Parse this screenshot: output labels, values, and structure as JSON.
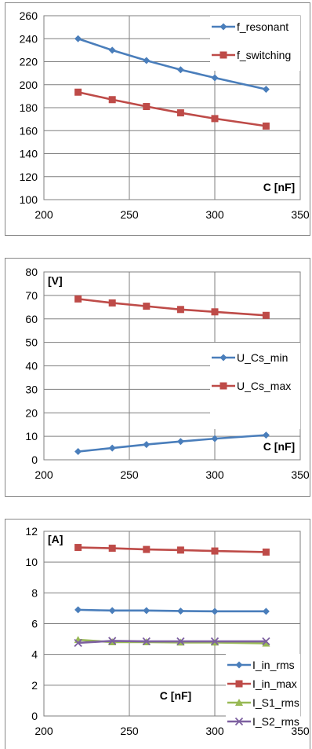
{
  "chart_data": [
    {
      "type": "line",
      "title": "",
      "xlabel": "C [nF]",
      "ylabel": "",
      "xlim": [
        200,
        350
      ],
      "ylim": [
        100,
        260
      ],
      "xticks": [
        200,
        250,
        300,
        350
      ],
      "yticks": [
        100,
        120,
        140,
        160,
        180,
        200,
        220,
        240,
        260
      ],
      "grid": true,
      "legend_position": "top-right",
      "x": [
        220,
        240,
        260,
        280,
        300,
        330
      ],
      "series": [
        {
          "name": "f_resonant",
          "color": "#4a7ebb",
          "marker": "diamond",
          "values": [
            240,
            230,
            221,
            213,
            206,
            196
          ]
        },
        {
          "name": "f_switching",
          "color": "#be4b48",
          "marker": "square",
          "values": [
            193.5,
            187,
            181,
            175.5,
            170.5,
            164
          ]
        }
      ]
    },
    {
      "type": "line",
      "title": "",
      "xlabel": "C [nF]",
      "ylabel": "[V]",
      "xlim": [
        200,
        350
      ],
      "ylim": [
        0,
        80
      ],
      "xticks": [
        200,
        250,
        300,
        350
      ],
      "yticks": [
        0,
        10,
        20,
        30,
        40,
        50,
        60,
        70,
        80
      ],
      "grid": true,
      "legend_position": "right",
      "x": [
        220,
        240,
        260,
        280,
        300,
        330
      ],
      "series": [
        {
          "name": "U_Cs_min",
          "color": "#4a7ebb",
          "marker": "diamond",
          "values": [
            3.5,
            5,
            6.5,
            7.8,
            9,
            10.5
          ]
        },
        {
          "name": "U_Cs_max",
          "color": "#be4b48",
          "marker": "square",
          "values": [
            68.5,
            66.8,
            65.4,
            64,
            63,
            61.5
          ]
        }
      ]
    },
    {
      "type": "line",
      "title": "",
      "xlabel": "C [nF]",
      "ylabel": "[A]",
      "xlim": [
        200,
        350
      ],
      "ylim": [
        0,
        12
      ],
      "xticks": [
        200,
        250,
        300,
        350
      ],
      "yticks": [
        0,
        2,
        4,
        6,
        8,
        10,
        12
      ],
      "grid": true,
      "legend_position": "bottom-right",
      "x": [
        220,
        240,
        260,
        280,
        300,
        330
      ],
      "series": [
        {
          "name": "I_in_rms",
          "color": "#4a7ebb",
          "marker": "diamond",
          "values": [
            6.9,
            6.85,
            6.85,
            6.82,
            6.8,
            6.8
          ]
        },
        {
          "name": "I_in_max",
          "color": "#be4b48",
          "marker": "square",
          "values": [
            10.95,
            10.9,
            10.82,
            10.78,
            10.72,
            10.65
          ]
        },
        {
          "name": "I_S1_rms",
          "color": "#98b954",
          "marker": "triangle",
          "values": [
            4.95,
            4.8,
            4.8,
            4.78,
            4.78,
            4.72
          ]
        },
        {
          "name": "I_S2_rms",
          "color": "#7d60a0",
          "marker": "x",
          "values": [
            4.75,
            4.88,
            4.85,
            4.85,
            4.85,
            4.85
          ]
        }
      ]
    }
  ]
}
